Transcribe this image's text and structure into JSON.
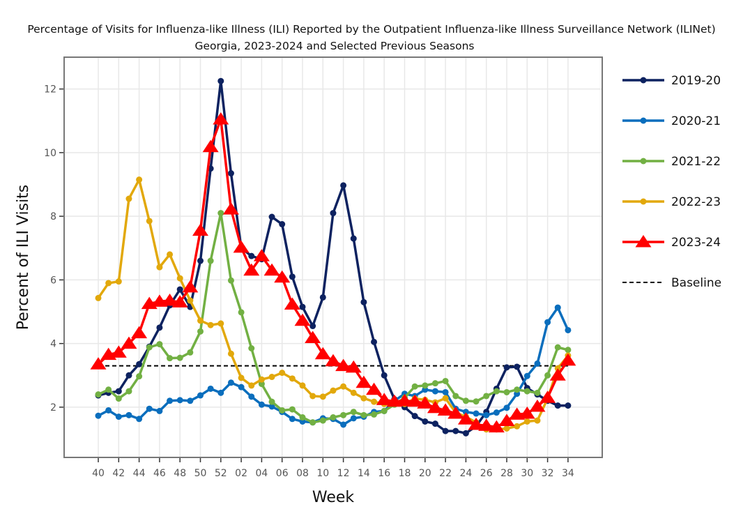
{
  "chart_data": {
    "type": "line",
    "title": "Percentage of Visits for Influenza-like Illness (ILI) Reported by the Outpatient Influenza-like Illness Surveillance Network (ILINet)",
    "subtitle": "Georgia, 2023-2024 and Selected Previous Seasons",
    "xlabel": "Week",
    "ylabel": "Percent of ILI Visits",
    "ylim": [
      0.42,
      13.0
    ],
    "yticks": [
      2,
      4,
      6,
      8,
      10,
      12
    ],
    "x": [
      "40",
      "41",
      "42",
      "43",
      "44",
      "45",
      "46",
      "47",
      "48",
      "49",
      "50",
      "51",
      "52",
      "01",
      "02",
      "03",
      "04",
      "05",
      "06",
      "07",
      "08",
      "09",
      "10",
      "11",
      "12",
      "13",
      "14",
      "15",
      "16",
      "17",
      "18",
      "19",
      "20",
      "21",
      "22",
      "23",
      "24",
      "25",
      "26",
      "27",
      "28",
      "29",
      "30",
      "31",
      "32",
      "33",
      "34"
    ],
    "xticks": [
      "40",
      "42",
      "44",
      "46",
      "48",
      "50",
      "52",
      "02",
      "04",
      "06",
      "08",
      "10",
      "12",
      "14",
      "16",
      "18",
      "20",
      "22",
      "24",
      "26",
      "28",
      "30",
      "32",
      "34"
    ],
    "grid": true,
    "legend_position": "right",
    "baseline": {
      "name": "Baseline",
      "value": 3.3,
      "color": "#000000"
    },
    "series": [
      {
        "name": "2019-20",
        "color": "#0d2260",
        "marker": "circle",
        "values": [
          2.37,
          2.45,
          2.5,
          3.0,
          3.35,
          3.9,
          4.5,
          5.2,
          5.7,
          5.15,
          6.6,
          9.5,
          12.25,
          9.35,
          7.0,
          6.75,
          6.65,
          7.98,
          7.75,
          6.1,
          5.15,
          4.55,
          5.45,
          8.1,
          8.97,
          7.3,
          5.3,
          4.05,
          3.0,
          2.25,
          2.0,
          1.72,
          1.55,
          1.48,
          1.25,
          1.25,
          1.18,
          1.4,
          1.85,
          2.58,
          3.25,
          3.27,
          2.6,
          2.4,
          2.2,
          2.05,
          2.05
        ]
      },
      {
        "name": "2020-21",
        "color": "#0a6ebd",
        "marker": "circle",
        "values": [
          1.73,
          1.9,
          1.7,
          1.75,
          1.63,
          1.95,
          1.88,
          2.2,
          2.22,
          2.2,
          2.37,
          2.58,
          2.45,
          2.77,
          2.63,
          2.33,
          2.08,
          2.02,
          1.85,
          1.63,
          1.55,
          1.52,
          1.65,
          1.63,
          1.45,
          1.65,
          1.7,
          1.85,
          1.88,
          2.2,
          2.42,
          2.35,
          2.55,
          2.5,
          2.47,
          1.95,
          1.85,
          1.8,
          1.75,
          1.83,
          1.98,
          2.42,
          2.98,
          3.37,
          4.67,
          5.13,
          4.42
        ]
      },
      {
        "name": "2021-22",
        "color": "#72b043",
        "marker": "circle",
        "values": [
          2.4,
          2.55,
          2.27,
          2.5,
          2.97,
          3.88,
          3.98,
          3.54,
          3.55,
          3.72,
          4.38,
          6.6,
          8.1,
          5.98,
          4.98,
          3.85,
          2.73,
          2.17,
          1.9,
          1.93,
          1.68,
          1.52,
          1.58,
          1.68,
          1.75,
          1.85,
          1.75,
          1.77,
          1.88,
          2.08,
          2.3,
          2.65,
          2.68,
          2.75,
          2.82,
          2.35,
          2.2,
          2.18,
          2.35,
          2.5,
          2.47,
          2.55,
          2.5,
          2.45,
          3.0,
          3.88,
          3.8
        ]
      },
      {
        "name": "2022-23",
        "color": "#e2a80b",
        "marker": "circle",
        "values": [
          5.43,
          5.9,
          5.95,
          8.55,
          9.15,
          7.85,
          6.4,
          6.8,
          6.05,
          5.35,
          4.72,
          4.58,
          4.63,
          3.68,
          2.92,
          2.68,
          2.87,
          2.95,
          3.08,
          2.9,
          2.68,
          2.35,
          2.33,
          2.52,
          2.65,
          2.45,
          2.28,
          2.17,
          2.1,
          2.12,
          2.1,
          2.27,
          2.23,
          2.15,
          2.28,
          1.83,
          1.7,
          1.52,
          1.3,
          1.3,
          1.33,
          1.4,
          1.55,
          1.58,
          2.27,
          3.22,
          3.62
        ]
      },
      {
        "name": "2023-24",
        "color": "#ff0000",
        "marker": "triangle",
        "values": [
          3.35,
          3.65,
          3.72,
          4.0,
          4.33,
          5.25,
          5.32,
          5.35,
          5.3,
          5.77,
          7.55,
          10.18,
          11.05,
          8.22,
          7.02,
          6.3,
          6.75,
          6.3,
          6.08,
          5.23,
          4.72,
          4.18,
          3.67,
          3.45,
          3.3,
          3.25,
          2.77,
          2.55,
          2.23,
          2.18,
          2.2,
          2.18,
          2.12,
          1.98,
          1.9,
          1.8,
          1.62,
          1.45,
          1.42,
          1.37,
          1.57,
          1.77,
          1.8,
          2.02,
          2.3,
          3.0,
          3.47
        ]
      }
    ]
  }
}
